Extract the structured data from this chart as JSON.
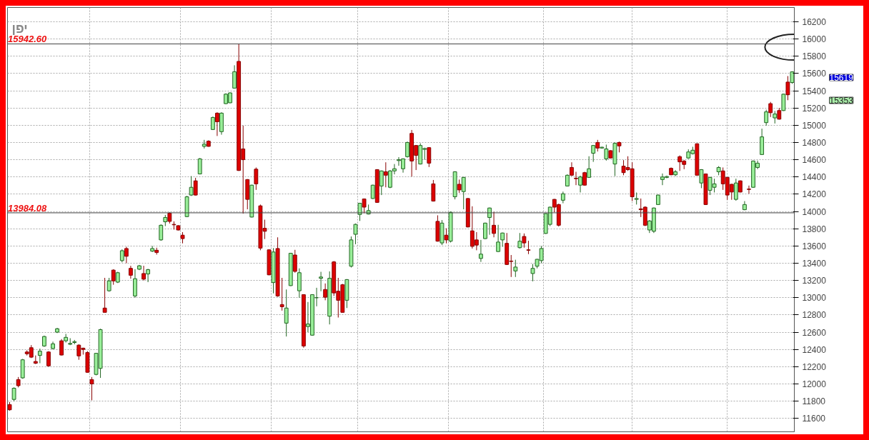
{
  "chart_data": {
    "type": "candlestick",
    "title": "יפן",
    "categories": [
      null,
      null,
      null,
      null,
      null,
      null,
      null,
      null,
      null,
      null,
      null,
      null,
      null,
      null,
      null,
      null,
      null,
      null,
      null,
      null,
      null,
      null,
      null,
      null,
      null,
      null,
      null,
      null,
      null,
      null,
      null,
      null,
      null,
      null,
      null,
      null,
      null,
      null,
      null,
      null,
      null,
      null,
      null,
      null,
      null,
      null,
      null,
      null,
      null,
      null,
      null,
      null,
      null,
      null,
      null,
      null,
      null,
      null,
      null,
      null,
      null,
      null,
      null,
      null,
      null,
      null,
      null,
      null,
      null,
      null,
      null,
      null,
      null,
      null,
      null,
      null,
      null,
      null,
      null,
      null,
      null,
      null,
      null,
      null,
      null,
      null,
      null,
      null,
      null,
      null,
      null,
      null,
      null,
      null,
      null,
      null,
      null,
      null,
      null,
      null,
      null,
      null,
      null,
      null,
      null,
      null,
      null,
      null,
      null,
      null,
      null,
      null,
      null,
      null,
      null,
      null,
      null,
      null,
      null,
      null,
      null,
      null,
      null,
      null,
      null,
      null,
      null,
      null,
      null,
      null,
      null,
      null,
      null,
      null,
      null,
      null,
      null,
      null,
      null,
      null,
      null,
      null,
      null,
      null,
      null,
      null,
      null,
      null,
      null,
      null,
      null,
      null,
      null,
      null,
      null,
      null,
      null,
      null,
      null,
      null,
      null,
      null,
      null,
      null,
      null,
      null,
      null,
      null,
      null,
      null,
      null,
      null,
      null,
      null,
      null,
      null,
      null,
      null,
      null,
      null,
      null,
      null
    ],
    "ohlc": [
      [
        11760,
        11790,
        11690,
        11700
      ],
      [
        11820,
        11960,
        11800,
        11950
      ],
      [
        12050,
        12080,
        11960,
        11980
      ],
      [
        12070,
        12290,
        12060,
        12280
      ],
      [
        12370,
        12390,
        12330,
        12350
      ],
      [
        12420,
        12450,
        12300,
        12310
      ],
      [
        12260,
        12330,
        12230,
        12240
      ],
      [
        12330,
        12410,
        12240,
        12380
      ],
      [
        12440,
        12560,
        12430,
        12550
      ],
      [
        12370,
        12380,
        12200,
        12210
      ],
      [
        12410,
        12490,
        12400,
        12465
      ],
      [
        12600,
        12650,
        12590,
        12640
      ],
      [
        12500,
        12520,
        12330,
        12335
      ],
      [
        12500,
        12580,
        12480,
        12540
      ],
      [
        12460,
        12530,
        12450,
        12470
      ],
      [
        12480,
        12510,
        12460,
        12490
      ],
      [
        12450,
        12460,
        12280,
        12325
      ],
      [
        12415,
        12420,
        12340,
        12400
      ],
      [
        12365,
        12380,
        12130,
        12135
      ],
      [
        12050,
        12080,
        11810,
        12000
      ],
      [
        12110,
        12360,
        12100,
        12355
      ],
      [
        12180,
        12640,
        12070,
        12630
      ],
      [
        12880,
        13230,
        12830,
        12830
      ],
      [
        13080,
        13230,
        13070,
        13195
      ],
      [
        13320,
        13330,
        13150,
        13195
      ],
      [
        13180,
        13300,
        13170,
        13290
      ],
      [
        13430,
        13560,
        13410,
        13545
      ],
      [
        13570,
        13590,
        13400,
        13480
      ],
      [
        13340,
        13370,
        13220,
        13260
      ],
      [
        13020,
        13330,
        13000,
        13220
      ],
      [
        13330,
        13380,
        13320,
        13370
      ],
      [
        13280,
        13370,
        13200,
        13215
      ],
      [
        13275,
        13335,
        13180,
        13325
      ],
      [
        13540,
        13600,
        13530,
        13570
      ],
      [
        13550,
        13580,
        13500,
        13525
      ],
      [
        13670,
        13850,
        13660,
        13840
      ],
      [
        13880,
        13960,
        13830,
        13930
      ],
      [
        13980,
        13990,
        13860,
        13885
      ],
      [
        13850,
        13885,
        13790,
        13845
      ],
      [
        13835,
        13840,
        13780,
        13785
      ],
      [
        13725,
        13760,
        13630,
        13685
      ],
      [
        13940,
        14180,
        13935,
        14170
      ],
      [
        14190,
        14410,
        14180,
        14280
      ],
      [
        14355,
        14390,
        14185,
        14190
      ],
      [
        14435,
        14620,
        14430,
        14610
      ],
      [
        14755,
        14830,
        14730,
        14780
      ],
      [
        14815,
        14825,
        14750,
        14755
      ],
      [
        14950,
        15100,
        14945,
        15090
      ],
      [
        15140,
        15150,
        14875,
        15040
      ],
      [
        14925,
        15150,
        14890,
        15140
      ],
      [
        15250,
        15370,
        15245,
        15360
      ],
      [
        15260,
        15380,
        15255,
        15375
      ],
      [
        15430,
        15695,
        15425,
        15620
      ],
      [
        15740,
        15942.6,
        14470,
        14475
      ],
      [
        14725,
        14995,
        13975,
        14600
      ],
      [
        14370,
        14375,
        14025,
        14140
      ],
      [
        13935,
        14310,
        13930,
        14305
      ],
      [
        14490,
        14510,
        14250,
        14320
      ],
      [
        14065,
        14080,
        13550,
        13575
      ],
      [
        13805,
        13905,
        13680,
        13770
      ],
      [
        13555,
        13560,
        13260,
        13265
      ],
      [
        13175,
        13575,
        13050,
        13530
      ],
      [
        13570,
        13700,
        13010,
        13020
      ],
      [
        12920,
        13230,
        12850,
        12895
      ],
      [
        12705,
        13095,
        12550,
        12880
      ],
      [
        13140,
        13520,
        13135,
        13515
      ],
      [
        13495,
        13555,
        13290,
        13305
      ],
      [
        13080,
        13340,
        13000,
        13290
      ],
      [
        13035,
        13040,
        12420,
        12440
      ],
      [
        12665,
        12950,
        12600,
        12695
      ],
      [
        12565,
        13040,
        12560,
        13035
      ],
      [
        13000,
        13115,
        12900,
        13000
      ],
      [
        13225,
        13300,
        13075,
        13240
      ],
      [
        13095,
        13165,
        12970,
        13005
      ],
      [
        12785,
        13305,
        12690,
        13225
      ],
      [
        13415,
        13425,
        13020,
        13055
      ],
      [
        13075,
        13230,
        12770,
        12970
      ],
      [
        13150,
        13160,
        12830,
        12830
      ],
      [
        12970,
        13215,
        12880,
        13210
      ],
      [
        13365,
        13710,
        13350,
        13670
      ],
      [
        13735,
        13860,
        13620,
        13850
      ],
      [
        13965,
        14100,
        13890,
        14095
      ],
      [
        14145,
        14150,
        13980,
        14050
      ],
      [
        13970,
        14080,
        13965,
        14010
      ],
      [
        14150,
        14310,
        14145,
        14305
      ],
      [
        14485,
        14490,
        14100,
        14105
      ],
      [
        14295,
        14475,
        14190,
        14470
      ],
      [
        14460,
        14570,
        14280,
        14420
      ],
      [
        14280,
        14480,
        14270,
        14470
      ],
      [
        14470,
        14550,
        14430,
        14495
      ],
      [
        14590,
        14630,
        14530,
        14600
      ],
      [
        14495,
        14615,
        14450,
        14610
      ],
      [
        14635,
        14810,
        14625,
        14800
      ],
      [
        14905,
        14945,
        14405,
        14585
      ],
      [
        14765,
        14770,
        14480,
        14650
      ],
      [
        14550,
        14790,
        14545,
        14765
      ],
      [
        14720,
        14740,
        14600,
        14730
      ],
      [
        14740,
        14745,
        14515,
        14560
      ],
      [
        14320,
        14365,
        14115,
        14120
      ],
      [
        13885,
        13955,
        13650,
        13655
      ],
      [
        13635,
        13900,
        13610,
        13865
      ],
      [
        13725,
        13805,
        13630,
        13670
      ],
      [
        13655,
        14000,
        13640,
        13990
      ],
      [
        14170,
        14465,
        14140,
        14460
      ],
      [
        14315,
        14370,
        14215,
        14250
      ],
      [
        14230,
        14400,
        14025,
        14395
      ],
      [
        14150,
        14155,
        13815,
        13820
      ],
      [
        13775,
        14060,
        13570,
        13595
      ],
      [
        13670,
        13760,
        13550,
        13610
      ],
      [
        13455,
        13670,
        13415,
        13505
      ],
      [
        13685,
        13870,
        13680,
        13865
      ],
      [
        13930,
        14045,
        13730,
        14040
      ],
      [
        13840,
        13995,
        13700,
        13745
      ],
      [
        13535,
        13845,
        13530,
        13645
      ],
      [
        13670,
        13755,
        13590,
        13750
      ],
      [
        13630,
        13750,
        13380,
        13385
      ],
      [
        13425,
        13495,
        13240,
        13420
      ],
      [
        13310,
        13440,
        13240,
        13355
      ],
      [
        13580,
        13750,
        13570,
        13655
      ],
      [
        13710,
        13745,
        13580,
        13635
      ],
      [
        13555,
        13660,
        13505,
        13550
      ],
      [
        13280,
        13390,
        13190,
        13340
      ],
      [
        13365,
        13450,
        13340,
        13445
      ],
      [
        13430,
        13600,
        13400,
        13570
      ],
      [
        13745,
        13980,
        13740,
        13975
      ],
      [
        13850,
        14055,
        13830,
        14050
      ],
      [
        14140,
        14145,
        13990,
        14050
      ],
      [
        14080,
        14090,
        13825,
        13840
      ],
      [
        14130,
        14230,
        14095,
        14205
      ],
      [
        14295,
        14430,
        14290,
        14420
      ],
      [
        14510,
        14570,
        14410,
        14420
      ],
      [
        14385,
        14460,
        14305,
        14380
      ],
      [
        14305,
        14415,
        14220,
        14400
      ],
      [
        14450,
        14460,
        14300,
        14305
      ],
      [
        14395,
        14640,
        14390,
        14495
      ],
      [
        14675,
        14770,
        14575,
        14765
      ],
      [
        14800,
        14830,
        14695,
        14735
      ],
      [
        14735,
        14750,
        14730,
        14745
      ],
      [
        14610,
        14775,
        14590,
        14725
      ],
      [
        14705,
        14710,
        14615,
        14620
      ],
      [
        14550,
        14800,
        14410,
        14790
      ],
      [
        14800,
        14810,
        14685,
        14760
      ],
      [
        14525,
        14595,
        14420,
        14450
      ],
      [
        14510,
        14640,
        14470,
        14485
      ],
      [
        14495,
        14570,
        14120,
        14170
      ],
      [
        14140,
        14220,
        14080,
        14150
      ],
      [
        14030,
        14150,
        13935,
        14020
      ],
      [
        14050,
        14060,
        13830,
        13840
      ],
      [
        13785,
        13900,
        13750,
        13890
      ],
      [
        13770,
        14045,
        13750,
        14040
      ],
      [
        14080,
        14195,
        14075,
        14190
      ],
      [
        14370,
        14440,
        14305,
        14400
      ],
      [
        14395,
        14415,
        14385,
        14405
      ],
      [
        14500,
        14510,
        14420,
        14425
      ],
      [
        14425,
        14480,
        14410,
        14460
      ],
      [
        14635,
        14650,
        14470,
        14575
      ],
      [
        14585,
        14595,
        14490,
        14545
      ],
      [
        14620,
        14720,
        14610,
        14690
      ],
      [
        14670,
        14750,
        14660,
        14710
      ],
      [
        14785,
        14790,
        14415,
        14420
      ],
      [
        14330,
        14490,
        14270,
        14485
      ],
      [
        14435,
        14440,
        14075,
        14080
      ],
      [
        14245,
        14400,
        14190,
        14395
      ],
      [
        14280,
        14380,
        14220,
        14320
      ],
      [
        14460,
        14525,
        14420,
        14510
      ],
      [
        14470,
        14510,
        14250,
        14320
      ],
      [
        14395,
        14400,
        14135,
        14190
      ],
      [
        14315,
        14320,
        14135,
        14225
      ],
      [
        14140,
        14380,
        14125,
        14330
      ],
      [
        14355,
        14360,
        14220,
        14225
      ],
      [
        14020,
        14120,
        14015,
        14080
      ],
      [
        14260,
        14300,
        14205,
        14255
      ],
      [
        14280,
        14590,
        14275,
        14585
      ],
      [
        14510,
        14590,
        14490,
        14560
      ],
      [
        14660,
        14960,
        14655,
        14865
      ],
      [
        15030,
        15180,
        14995,
        15155
      ],
      [
        15250,
        15270,
        15095,
        15145
      ],
      [
        15085,
        15165,
        15020,
        15130
      ],
      [
        15170,
        15200,
        15065,
        15070
      ],
      [
        15170,
        15365,
        15165,
        15360
      ],
      [
        15500,
        15570,
        15290,
        15353
      ],
      [
        15495,
        15625,
        15480,
        15619
      ]
    ],
    "ylim": [
      11445,
      16365
    ],
    "yticks": [
      11600,
      11800,
      12000,
      12200,
      12400,
      12600,
      12800,
      13000,
      13200,
      13400,
      13600,
      13800,
      14000,
      14200,
      14400,
      14600,
      14800,
      15000,
      15200,
      15400,
      15600,
      15800,
      16000,
      16200
    ],
    "ref_lines": [
      {
        "axis": "y",
        "value": 15942.6,
        "label": "15942.60"
      },
      {
        "axis": "y",
        "value": 13984.08,
        "label": "13984.08"
      }
    ],
    "annotations": [
      "15619",
      "15353"
    ],
    "grid": true,
    "tick_labels": "y"
  }
}
